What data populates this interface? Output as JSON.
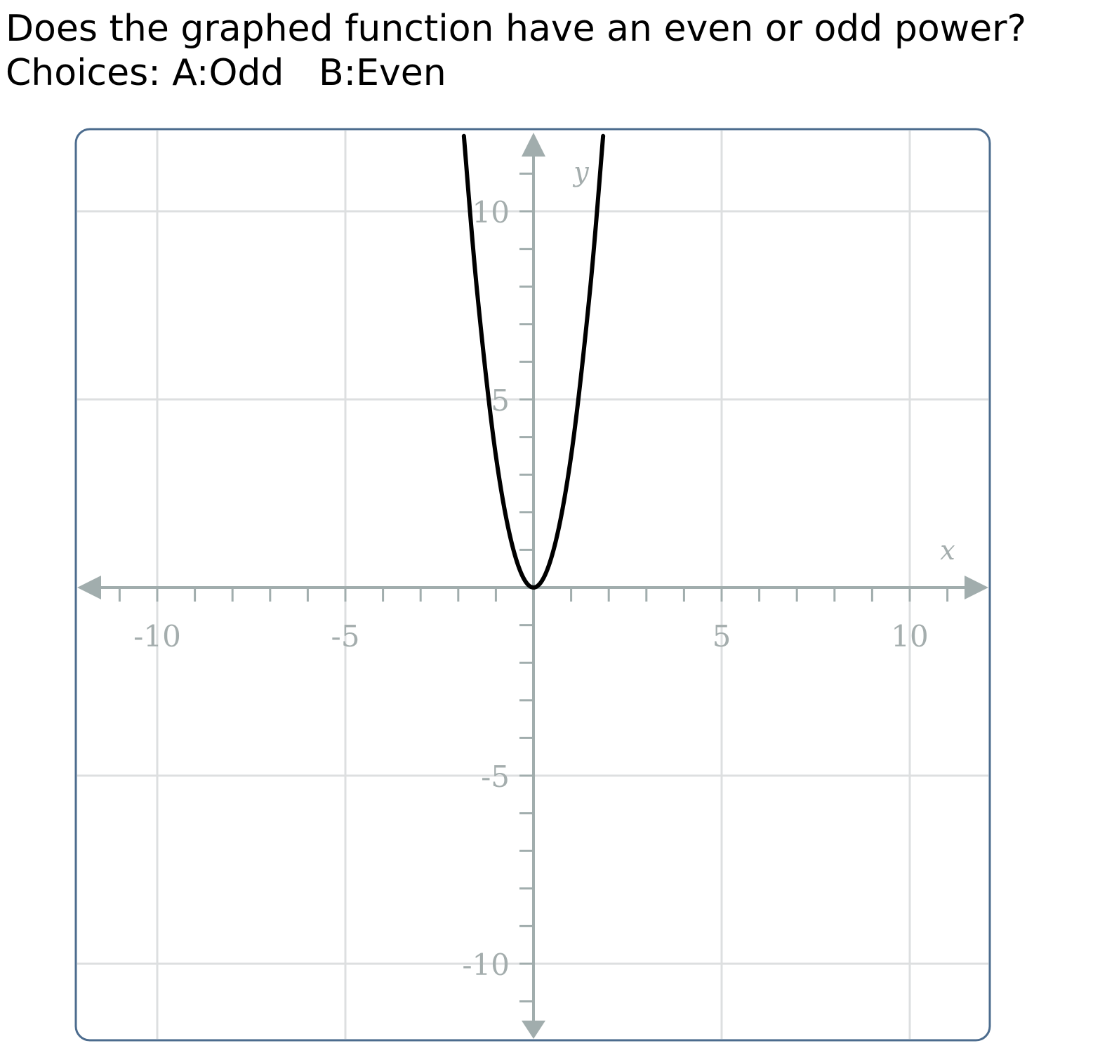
{
  "question": {
    "text": "Does the graphed function have an even or odd power?",
    "choices_label": "Choices:",
    "choice_a": "A:Odd",
    "choice_b": "B:Even"
  },
  "chart_data": {
    "type": "line",
    "title": "",
    "xlabel": "x",
    "ylabel": "y",
    "xlim": [
      -12,
      12
    ],
    "ylim": [
      -12,
      12
    ],
    "grid": true,
    "x_ticks": [
      -10,
      -5,
      5,
      10
    ],
    "y_ticks": [
      10,
      5,
      -5,
      -10
    ],
    "x_tick_labels": [
      "-10",
      "-5",
      "5",
      "10"
    ],
    "y_tick_labels": [
      "10",
      "5",
      "-5",
      "-10"
    ],
    "series": [
      {
        "x": [
          -1.85,
          -1.5,
          -1.0,
          -0.5,
          0,
          0.5,
          1.0,
          1.5,
          1.85
        ],
        "y": [
          12.0,
          7.88,
          3.5,
          0.88,
          0,
          0.88,
          3.5,
          7.88,
          12.0
        ]
      }
    ]
  },
  "colors": {
    "border": "#4c6c8e",
    "grid": "#dddfe0",
    "axis": "#a1adad",
    "curve": "#000000",
    "tick_label": "#a4adad"
  }
}
